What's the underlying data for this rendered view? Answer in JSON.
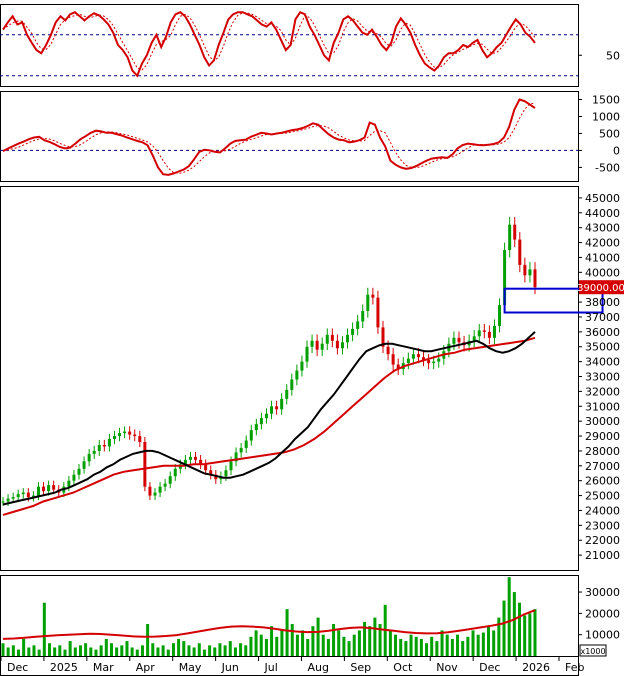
{
  "chart_data": {
    "type": "candlestick",
    "title": "",
    "xlabel": "",
    "ylabel": "",
    "x_ticks": [
      "Dec",
      "2025",
      "Mar",
      "Apr",
      "May",
      "Jun",
      "Jul",
      "Aug",
      "Sep",
      "Oct",
      "Nov",
      "Dec",
      "2026",
      "Feb"
    ],
    "rsi": {
      "y_ticks": [
        50
      ],
      "upper_line": 70,
      "lower_line": 30,
      "ylim": [
        20,
        100
      ],
      "line_color": "#d40000",
      "signal_color": "#d40000",
      "values": [
        75,
        82,
        88,
        80,
        82,
        70,
        62,
        55,
        52,
        60,
        70,
        82,
        88,
        84,
        90,
        92,
        88,
        84,
        88,
        91,
        89,
        85,
        80,
        72,
        60,
        55,
        48,
        35,
        30,
        42,
        50,
        62,
        70,
        58,
        68,
        82,
        90,
        92,
        88,
        80,
        70,
        60,
        48,
        40,
        45,
        60,
        72,
        85,
        90,
        92,
        92,
        90,
        88,
        84,
        80,
        78,
        82,
        75,
        65,
        55,
        60,
        85,
        92,
        90,
        78,
        70,
        60,
        50,
        45,
        62,
        72,
        85,
        88,
        84,
        78,
        72,
        70,
        75,
        68,
        60,
        55,
        62,
        78,
        86,
        80,
        72,
        60,
        50,
        42,
        38,
        35,
        40,
        48,
        52,
        52,
        55,
        60,
        58,
        62,
        65,
        55,
        48,
        52,
        58,
        62,
        70,
        78,
        85,
        80,
        72,
        68,
        62
      ]
    },
    "macd": {
      "y_ticks": [
        1500,
        1000,
        500,
        0,
        -500
      ],
      "ylim": [
        -900,
        1750
      ],
      "line_color": "#d40000",
      "signal_color": "#d40000",
      "values": [
        -20,
        60,
        130,
        200,
        260,
        330,
        380,
        400,
        300,
        250,
        180,
        100,
        60,
        80,
        200,
        330,
        420,
        520,
        580,
        560,
        520,
        520,
        480,
        440,
        380,
        330,
        280,
        240,
        150,
        -150,
        -500,
        -700,
        -720,
        -680,
        -620,
        -560,
        -460,
        -260,
        -40,
        20,
        0,
        -40,
        -60,
        60,
        200,
        280,
        300,
        320,
        400,
        460,
        520,
        500,
        470,
        500,
        520,
        560,
        600,
        620,
        660,
        720,
        800,
        760,
        620,
        480,
        380,
        320,
        300,
        240,
        260,
        300,
        380,
        820,
        760,
        380,
        120,
        -300,
        -420,
        -500,
        -540,
        -520,
        -460,
        -380,
        -300,
        -240,
        -220,
        -200,
        -220,
        -120,
        60,
        160,
        200,
        180,
        160,
        150,
        170,
        190,
        240,
        380,
        700,
        1200,
        1500,
        1450,
        1350,
        1250
      ]
    },
    "price": {
      "y_ticks": [
        21000,
        22000,
        23000,
        24000,
        25000,
        26000,
        27000,
        28000,
        29000,
        30000,
        31000,
        32000,
        33000,
        34000,
        35000,
        36000,
        37000,
        38000,
        39000,
        40000,
        41000,
        42000,
        43000,
        44000,
        45000
      ],
      "ylim": [
        20000,
        45800
      ],
      "last_price_label": "39000.00",
      "up_color": "#00a000",
      "down_color": "#d40000",
      "ma_short_color": "#000000",
      "ma_long_color": "#d40000",
      "box_color": "#0000d0",
      "box": {
        "x_start_index": 99,
        "x_end_index": 113,
        "price_low": 37300,
        "price_high": 38900
      },
      "close": [
        24600,
        24800,
        24900,
        25100,
        25200,
        24900,
        25000,
        25600,
        25300,
        25700,
        25400,
        25200,
        25600,
        26000,
        26400,
        26800,
        27300,
        27800,
        28000,
        28400,
        28300,
        28800,
        29000,
        29200,
        29300,
        29100,
        29000,
        28600,
        25600,
        25000,
        25200,
        25600,
        25800,
        26300,
        26800,
        27100,
        27400,
        27600,
        27400,
        27100,
        26700,
        26400,
        26100,
        26300,
        26700,
        27300,
        27900,
        28200,
        28700,
        29400,
        29800,
        30200,
        30500,
        31000,
        30800,
        31500,
        32100,
        32800,
        33400,
        34000,
        35000,
        35400,
        34800,
        35200,
        35800,
        35400,
        34900,
        35300,
        35800,
        36200,
        36700,
        37400,
        38500,
        38300,
        36300,
        35000,
        34500,
        33800,
        33500,
        33900,
        34200,
        34500,
        34300,
        34100,
        33900,
        34000,
        34200,
        34700,
        35200,
        35600,
        35300,
        35100,
        35400,
        35700,
        36100,
        36000,
        35600,
        36400,
        37800,
        41500,
        43200,
        42200,
        40500,
        39800,
        40200,
        39000
      ],
      "ma_short": [
        24400,
        24500,
        24600,
        24700,
        24800,
        24900,
        25000,
        25100,
        25200,
        25400,
        25500,
        25700,
        25900,
        26100,
        26400,
        26600,
        26900,
        27100,
        27400,
        27600,
        27800,
        27900,
        28000,
        28000,
        27900,
        27700,
        27500,
        27300,
        27100,
        26900,
        26700,
        26500,
        26400,
        26300,
        26200,
        26200,
        26300,
        26400,
        26600,
        26800,
        27000,
        27200,
        27500,
        27900,
        28300,
        28800,
        29200,
        29600,
        30200,
        30800,
        31300,
        31800,
        32400,
        33000,
        33600,
        34200,
        34700,
        34900,
        35100,
        35200,
        35200,
        35100,
        35000,
        34900,
        34800,
        34700,
        34700,
        34800,
        34900,
        35000,
        35100,
        35200,
        35300,
        35400,
        35200,
        34900,
        34700,
        34600,
        34700,
        34900,
        35200,
        35600,
        36000
      ],
      "ma_long": [
        23700,
        23900,
        24100,
        24300,
        24600,
        24800,
        25000,
        25200,
        25500,
        25800,
        26100,
        26400,
        26600,
        26700,
        26800,
        26900,
        27000,
        27000,
        27000,
        27100,
        27100,
        27200,
        27300,
        27400,
        27500,
        27600,
        27700,
        27800,
        27900,
        28100,
        28400,
        28800,
        29300,
        29900,
        30500,
        31100,
        31700,
        32300,
        32900,
        33400,
        33700,
        33900,
        34100,
        34300,
        34500,
        34600,
        34800,
        34900,
        35000,
        35100,
        35200,
        35300,
        35400,
        35600
      ]
    },
    "volume": {
      "unit_label": "x1000",
      "y_ticks": [
        10000,
        20000,
        30000
      ],
      "ylim": [
        0,
        38000
      ],
      "bar_color": "#00a000",
      "ma_color": "#d40000",
      "values": [
        6000,
        4000,
        5000,
        3000,
        8000,
        4000,
        5000,
        3000,
        25000,
        6000,
        4000,
        5000,
        3000,
        7000,
        4000,
        5000,
        6000,
        4000,
        3000,
        5000,
        8000,
        6000,
        4000,
        5000,
        7000,
        4000,
        3000,
        5000,
        15000,
        6000,
        4000,
        5000,
        3000,
        6000,
        8000,
        7000,
        5000,
        4000,
        6000,
        3000,
        5000,
        4000,
        6000,
        5000,
        7000,
        4000,
        6000,
        5000,
        9000,
        12000,
        10000,
        8000,
        14000,
        9000,
        12000,
        22000,
        15000,
        10000,
        12000,
        8000,
        14000,
        18000,
        10000,
        8000,
        15000,
        12000,
        9000,
        7000,
        10000,
        12000,
        16000,
        14000,
        18000,
        15000,
        24000,
        12000,
        10000,
        8000,
        7000,
        10000,
        9000,
        8000,
        6000,
        9000,
        7000,
        12000,
        10000,
        8000,
        10000,
        7000,
        9000,
        12000,
        10000,
        11000,
        14000,
        12000,
        18000,
        26000,
        37000,
        30000,
        25000,
        19000,
        20000,
        22000
      ],
      "ma": [
        8000,
        8200,
        8600,
        9000,
        9400,
        9700,
        10000,
        10200,
        10400,
        10300,
        10000,
        9600,
        9200,
        9000,
        9100,
        9400,
        9800,
        10600,
        11500,
        12400,
        13200,
        13800,
        14000,
        13800,
        13400,
        12800,
        12000,
        11500,
        11200,
        11300,
        11800,
        12600,
        13200,
        13400,
        13000,
        12400,
        11800,
        11200,
        10800,
        10600,
        10700,
        11100,
        11800,
        12600,
        13400,
        14200,
        15200,
        17000,
        19500,
        21500
      ]
    }
  }
}
